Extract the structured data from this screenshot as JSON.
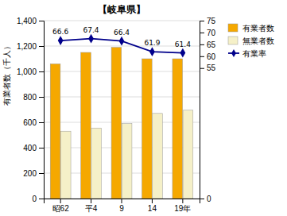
{
  "chart_data": {
    "type": "bar",
    "title": "【岐阜県】",
    "y_label": "有業者数（千人）",
    "categories": [
      "昭62",
      "平4",
      "9",
      "14",
      "19年"
    ],
    "series": [
      {
        "name": "有業者数",
        "type": "bar",
        "color": "#F5A800",
        "values": [
          1060,
          1150,
          1190,
          1100,
          1100
        ]
      },
      {
        "name": "無業者数",
        "type": "bar",
        "color": "#F5F0C8",
        "values": [
          530,
          555,
          590,
          670,
          695
        ]
      },
      {
        "name": "有業率",
        "type": "line",
        "axis": "y2",
        "color": "#00008B",
        "marker": "diamond",
        "data_labels": true,
        "values": [
          66.6,
          67.4,
          66.4,
          61.9,
          61.4
        ]
      }
    ],
    "ylim": [
      0,
      1400
    ],
    "yticks": [
      0,
      200,
      400,
      600,
      800,
      {
        "value": 1000,
        "label": "1,000"
      },
      {
        "value": 1200,
        "label": "1,200"
      },
      {
        "value": 1400,
        "label": "1,400"
      }
    ],
    "y2lim": [
      0,
      75
    ],
    "y2ticks": [
      0,
      55,
      60,
      65,
      70,
      75
    ],
    "grid": true,
    "legend": "upper right"
  }
}
